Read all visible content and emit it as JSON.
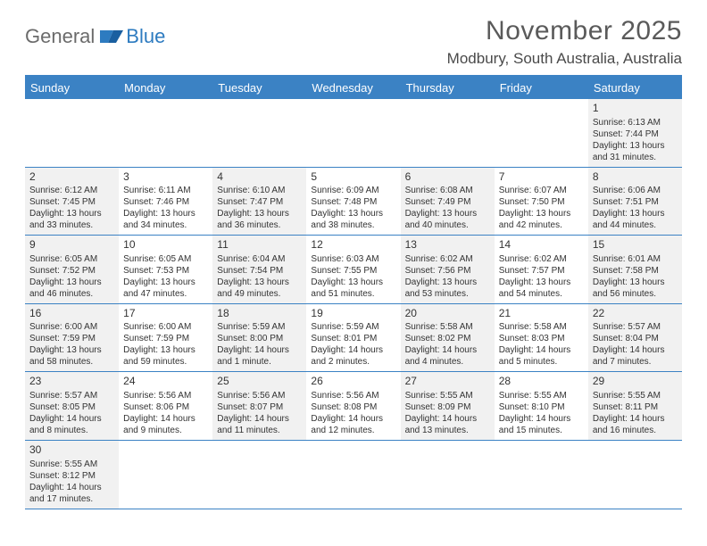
{
  "brand": {
    "part1": "General",
    "part2": "Blue"
  },
  "title": "November 2025",
  "location": "Modbury, South Australia, Australia",
  "colors": {
    "header_bg": "#3b82c4",
    "header_text": "#ffffff",
    "row_border": "#3b82c4",
    "cell_shade": "#f1f1f1",
    "text": "#333333",
    "brand_gray": "#6b6b6b",
    "brand_blue": "#2d7bc0"
  },
  "dayNames": [
    "Sunday",
    "Monday",
    "Tuesday",
    "Wednesday",
    "Thursday",
    "Friday",
    "Saturday"
  ],
  "weeks": [
    [
      null,
      null,
      null,
      null,
      null,
      null,
      {
        "n": "1",
        "sunrise": "Sunrise: 6:13 AM",
        "sunset": "Sunset: 7:44 PM",
        "daylight": "Daylight: 13 hours and 31 minutes."
      }
    ],
    [
      {
        "n": "2",
        "sunrise": "Sunrise: 6:12 AM",
        "sunset": "Sunset: 7:45 PM",
        "daylight": "Daylight: 13 hours and 33 minutes."
      },
      {
        "n": "3",
        "sunrise": "Sunrise: 6:11 AM",
        "sunset": "Sunset: 7:46 PM",
        "daylight": "Daylight: 13 hours and 34 minutes."
      },
      {
        "n": "4",
        "sunrise": "Sunrise: 6:10 AM",
        "sunset": "Sunset: 7:47 PM",
        "daylight": "Daylight: 13 hours and 36 minutes."
      },
      {
        "n": "5",
        "sunrise": "Sunrise: 6:09 AM",
        "sunset": "Sunset: 7:48 PM",
        "daylight": "Daylight: 13 hours and 38 minutes."
      },
      {
        "n": "6",
        "sunrise": "Sunrise: 6:08 AM",
        "sunset": "Sunset: 7:49 PM",
        "daylight": "Daylight: 13 hours and 40 minutes."
      },
      {
        "n": "7",
        "sunrise": "Sunrise: 6:07 AM",
        "sunset": "Sunset: 7:50 PM",
        "daylight": "Daylight: 13 hours and 42 minutes."
      },
      {
        "n": "8",
        "sunrise": "Sunrise: 6:06 AM",
        "sunset": "Sunset: 7:51 PM",
        "daylight": "Daylight: 13 hours and 44 minutes."
      }
    ],
    [
      {
        "n": "9",
        "sunrise": "Sunrise: 6:05 AM",
        "sunset": "Sunset: 7:52 PM",
        "daylight": "Daylight: 13 hours and 46 minutes."
      },
      {
        "n": "10",
        "sunrise": "Sunrise: 6:05 AM",
        "sunset": "Sunset: 7:53 PM",
        "daylight": "Daylight: 13 hours and 47 minutes."
      },
      {
        "n": "11",
        "sunrise": "Sunrise: 6:04 AM",
        "sunset": "Sunset: 7:54 PM",
        "daylight": "Daylight: 13 hours and 49 minutes."
      },
      {
        "n": "12",
        "sunrise": "Sunrise: 6:03 AM",
        "sunset": "Sunset: 7:55 PM",
        "daylight": "Daylight: 13 hours and 51 minutes."
      },
      {
        "n": "13",
        "sunrise": "Sunrise: 6:02 AM",
        "sunset": "Sunset: 7:56 PM",
        "daylight": "Daylight: 13 hours and 53 minutes."
      },
      {
        "n": "14",
        "sunrise": "Sunrise: 6:02 AM",
        "sunset": "Sunset: 7:57 PM",
        "daylight": "Daylight: 13 hours and 54 minutes."
      },
      {
        "n": "15",
        "sunrise": "Sunrise: 6:01 AM",
        "sunset": "Sunset: 7:58 PM",
        "daylight": "Daylight: 13 hours and 56 minutes."
      }
    ],
    [
      {
        "n": "16",
        "sunrise": "Sunrise: 6:00 AM",
        "sunset": "Sunset: 7:59 PM",
        "daylight": "Daylight: 13 hours and 58 minutes."
      },
      {
        "n": "17",
        "sunrise": "Sunrise: 6:00 AM",
        "sunset": "Sunset: 7:59 PM",
        "daylight": "Daylight: 13 hours and 59 minutes."
      },
      {
        "n": "18",
        "sunrise": "Sunrise: 5:59 AM",
        "sunset": "Sunset: 8:00 PM",
        "daylight": "Daylight: 14 hours and 1 minute."
      },
      {
        "n": "19",
        "sunrise": "Sunrise: 5:59 AM",
        "sunset": "Sunset: 8:01 PM",
        "daylight": "Daylight: 14 hours and 2 minutes."
      },
      {
        "n": "20",
        "sunrise": "Sunrise: 5:58 AM",
        "sunset": "Sunset: 8:02 PM",
        "daylight": "Daylight: 14 hours and 4 minutes."
      },
      {
        "n": "21",
        "sunrise": "Sunrise: 5:58 AM",
        "sunset": "Sunset: 8:03 PM",
        "daylight": "Daylight: 14 hours and 5 minutes."
      },
      {
        "n": "22",
        "sunrise": "Sunrise: 5:57 AM",
        "sunset": "Sunset: 8:04 PM",
        "daylight": "Daylight: 14 hours and 7 minutes."
      }
    ],
    [
      {
        "n": "23",
        "sunrise": "Sunrise: 5:57 AM",
        "sunset": "Sunset: 8:05 PM",
        "daylight": "Daylight: 14 hours and 8 minutes."
      },
      {
        "n": "24",
        "sunrise": "Sunrise: 5:56 AM",
        "sunset": "Sunset: 8:06 PM",
        "daylight": "Daylight: 14 hours and 9 minutes."
      },
      {
        "n": "25",
        "sunrise": "Sunrise: 5:56 AM",
        "sunset": "Sunset: 8:07 PM",
        "daylight": "Daylight: 14 hours and 11 minutes."
      },
      {
        "n": "26",
        "sunrise": "Sunrise: 5:56 AM",
        "sunset": "Sunset: 8:08 PM",
        "daylight": "Daylight: 14 hours and 12 minutes."
      },
      {
        "n": "27",
        "sunrise": "Sunrise: 5:55 AM",
        "sunset": "Sunset: 8:09 PM",
        "daylight": "Daylight: 14 hours and 13 minutes."
      },
      {
        "n": "28",
        "sunrise": "Sunrise: 5:55 AM",
        "sunset": "Sunset: 8:10 PM",
        "daylight": "Daylight: 14 hours and 15 minutes."
      },
      {
        "n": "29",
        "sunrise": "Sunrise: 5:55 AM",
        "sunset": "Sunset: 8:11 PM",
        "daylight": "Daylight: 14 hours and 16 minutes."
      }
    ],
    [
      {
        "n": "30",
        "sunrise": "Sunrise: 5:55 AM",
        "sunset": "Sunset: 8:12 PM",
        "daylight": "Daylight: 14 hours and 17 minutes."
      },
      null,
      null,
      null,
      null,
      null,
      null
    ]
  ]
}
